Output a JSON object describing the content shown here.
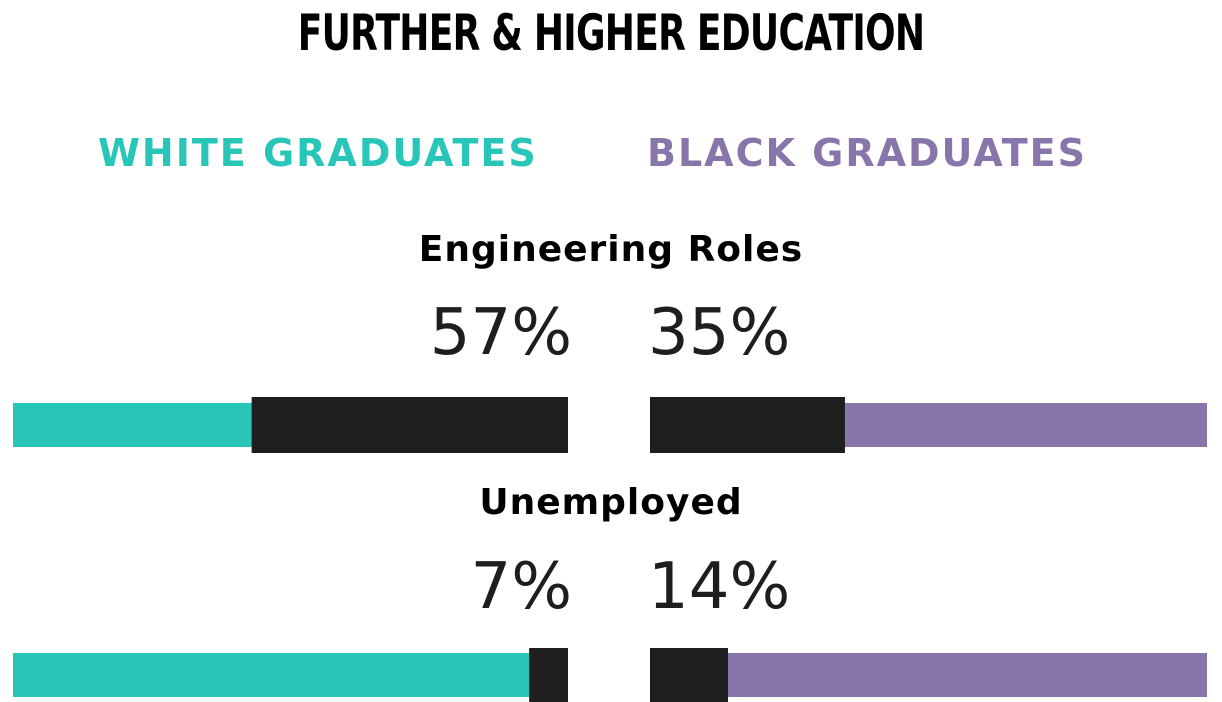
{
  "title": "FURTHER & HIGHER EDUCATION",
  "colors": {
    "white_graduates": "#27c6b8",
    "black_graduates": "#8876aa",
    "value_fill": "#1e1e1e"
  },
  "legend": {
    "white": "WHITE GRADUATES",
    "black": "BLACK GRADUATES"
  },
  "chart_data": {
    "type": "bar",
    "title": "FURTHER & HIGHER EDUCATION",
    "categories": [
      "Engineering Roles",
      "Unemployed"
    ],
    "series": [
      {
        "name": "WHITE GRADUATES",
        "values": [
          57,
          7
        ],
        "labels": [
          "57%",
          "7%"
        ]
      },
      {
        "name": "BLACK GRADUATES",
        "values": [
          35,
          14
        ],
        "labels": [
          "35%",
          "14%"
        ]
      }
    ],
    "ylim": [
      0,
      100
    ],
    "legend_position": "top"
  }
}
